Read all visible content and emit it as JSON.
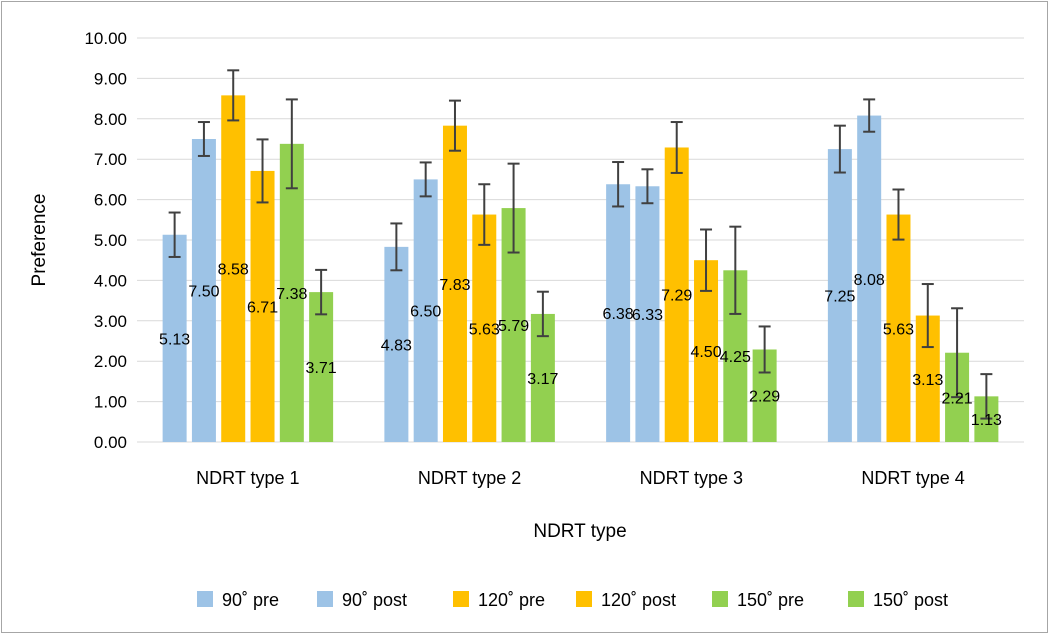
{
  "chart_data": {
    "type": "bar",
    "title": "",
    "xlabel": "NDRT type",
    "ylabel": "Preference",
    "ylim": [
      0,
      10
    ],
    "yticks": [
      "0.00",
      "1.00",
      "2.00",
      "3.00",
      "4.00",
      "5.00",
      "6.00",
      "7.00",
      "8.00",
      "9.00",
      "10.00"
    ],
    "grid": true,
    "legend_position": "bottom",
    "categories": [
      "NDRT type 1",
      "NDRT type 2",
      "NDRT type 3",
      "NDRT type 4"
    ],
    "series": [
      {
        "name": "90˚ pre",
        "color": "#9dc3e6",
        "values": [
          5.13,
          4.83,
          6.38,
          7.25
        ],
        "labels": [
          "5.13",
          "4.83",
          "6.38",
          "7.25"
        ],
        "error": [
          0.55,
          0.58,
          0.55,
          0.58
        ]
      },
      {
        "name": "90˚ post",
        "color": "#9dc3e6",
        "values": [
          7.5,
          6.5,
          6.33,
          8.08
        ],
        "labels": [
          "7.50",
          "6.50",
          "6.33",
          "8.08"
        ],
        "error": [
          0.42,
          0.42,
          0.42,
          0.4
        ]
      },
      {
        "name": "120˚ pre",
        "color": "#ffc000",
        "values": [
          8.58,
          7.83,
          7.29,
          5.63
        ],
        "labels": [
          "8.58",
          "7.83",
          "7.29",
          "5.63"
        ],
        "error": [
          0.62,
          0.62,
          0.63,
          0.62
        ]
      },
      {
        "name": "120˚ post",
        "color": "#ffc000",
        "values": [
          6.71,
          5.63,
          4.5,
          3.13
        ],
        "labels": [
          "6.71",
          "5.63",
          "4.50",
          "3.13"
        ],
        "error": [
          0.78,
          0.75,
          0.76,
          0.78
        ]
      },
      {
        "name": "150˚ pre",
        "color": "#92d050",
        "values": [
          7.38,
          5.79,
          4.25,
          2.21
        ],
        "labels": [
          "7.38",
          "5.79",
          "4.25",
          "2.21"
        ],
        "error": [
          1.1,
          1.1,
          1.08,
          1.1
        ]
      },
      {
        "name": "150˚ post",
        "color": "#92d050",
        "values": [
          3.71,
          3.17,
          2.29,
          1.13
        ],
        "labels": [
          "3.71",
          "3.17",
          "2.29",
          "1.13"
        ],
        "error": [
          0.55,
          0.55,
          0.57,
          0.55
        ]
      }
    ]
  }
}
